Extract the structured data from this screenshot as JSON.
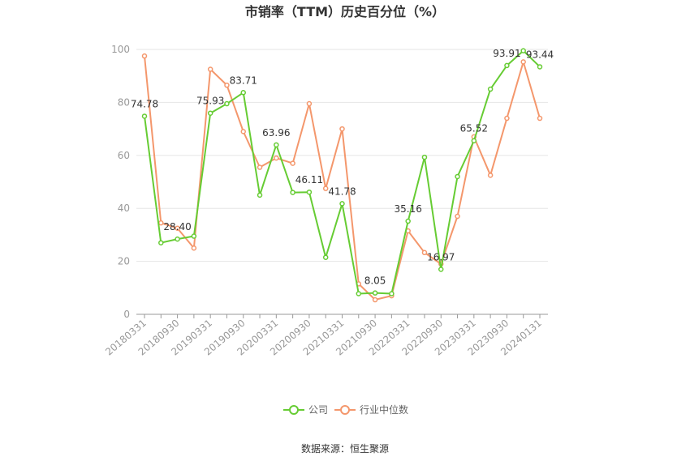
{
  "chart_data": {
    "type": "line",
    "title": "市销率（TTM）历史百分位（%）",
    "ylim": [
      0,
      100
    ],
    "yticks": [
      0,
      20,
      40,
      60,
      80,
      100
    ],
    "grid": true,
    "legend_position": "bottom",
    "x": [
      "20180331",
      "20180630",
      "20180930",
      "20181231",
      "20190331",
      "20190630",
      "20190930",
      "20191231",
      "20200331",
      "20200630",
      "20200930",
      "20201231",
      "20210331",
      "20210630",
      "20210930",
      "20211231",
      "20220331",
      "20220630",
      "20220930",
      "20221231",
      "20230331",
      "20230630",
      "20230930",
      "20231231",
      "20240131"
    ],
    "xticks": [
      "20180331",
      "20180930",
      "20190331",
      "20190930",
      "20200331",
      "20200930",
      "20210331",
      "20210930",
      "20220331",
      "20220930",
      "20230331",
      "20230930",
      "20240131"
    ],
    "series": [
      {
        "name": "公司",
        "color": "#66cc33",
        "values": [
          74.78,
          27,
          28.4,
          29.5,
          75.93,
          79.5,
          83.71,
          45,
          63.96,
          46,
          46.11,
          21.5,
          41.78,
          7.8,
          8.05,
          7.8,
          35.16,
          59.3,
          16.97,
          52,
          65.52,
          85,
          93.91,
          99.5,
          93.44
        ],
        "labels": {
          "0": "74.78",
          "2": "28.40",
          "4": "75.93",
          "6": "83.71",
          "8": "63.96",
          "10": "46.11",
          "12": "41.78",
          "14": "8.05",
          "16": "35.16",
          "18": "16.97",
          "20": "65.52",
          "22": "93.91",
          "24": "93.44"
        }
      },
      {
        "name": "行业中位数",
        "color": "#f4976c",
        "values": [
          97.5,
          34.5,
          32.5,
          25,
          92.5,
          86.5,
          69,
          55.5,
          59,
          57,
          79.5,
          47.5,
          70,
          11.5,
          5.5,
          7,
          31.5,
          23.3,
          19,
          37,
          67,
          52.5,
          74,
          95.3,
          74
        ]
      }
    ]
  },
  "legend": [
    {
      "label": "公司",
      "color": "#66cc33"
    },
    {
      "label": "行业中位数",
      "color": "#f4976c"
    }
  ],
  "source": "数据来源：恒生聚源"
}
